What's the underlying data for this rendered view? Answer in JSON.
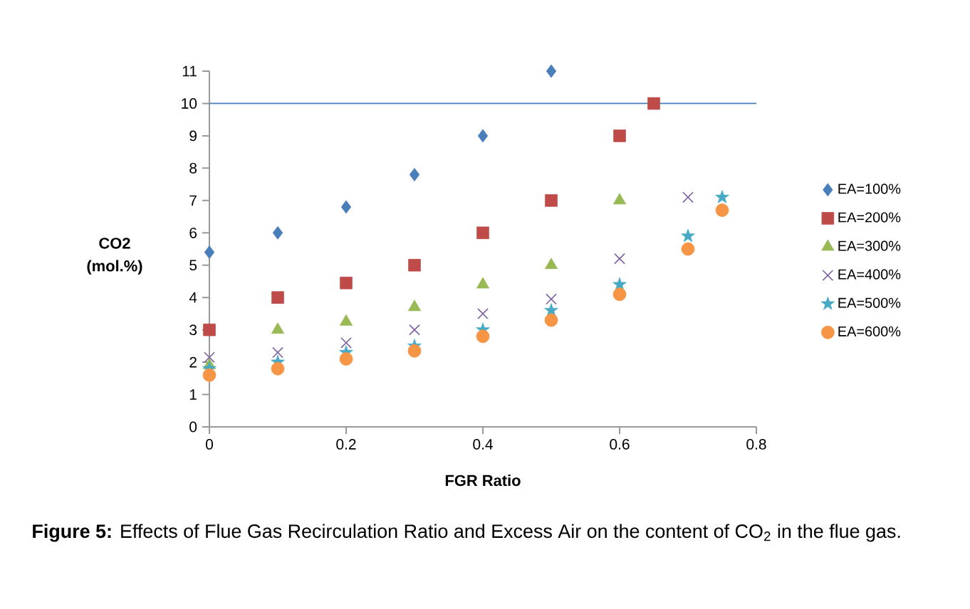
{
  "chart_data": {
    "type": "scatter",
    "xlabel": "FGR Ratio",
    "ylabel": "CO2 (mol.%)",
    "xlim": [
      0,
      0.8
    ],
    "xticks": [
      0,
      0.2,
      0.4,
      0.6,
      0.8
    ],
    "ylim": [
      0,
      11
    ],
    "yticks": [
      0,
      1,
      2,
      3,
      4,
      5,
      6,
      7,
      8,
      9,
      10,
      11
    ],
    "grid": false,
    "legend": "right",
    "series": [
      {
        "name": "EA=100%",
        "color": "#4a7ebb",
        "marker": "diamond",
        "x": [
          0,
          0.1,
          0.2,
          0.3,
          0.4,
          0.5
        ],
        "values": [
          5.4,
          6.0,
          6.8,
          7.8,
          9.0,
          11.0
        ]
      },
      {
        "name": "EA=200%",
        "color": "#be4b48",
        "marker": "square",
        "x": [
          0,
          0.1,
          0.2,
          0.3,
          0.4,
          0.5,
          0.6,
          0.65
        ],
        "values": [
          3.0,
          4.0,
          4.45,
          5.0,
          6.0,
          7.0,
          9.0,
          10.0
        ]
      },
      {
        "name": "EA=300%",
        "color": "#98b954",
        "marker": "triangle",
        "x": [
          0,
          0.1,
          0.2,
          0.3,
          0.4,
          0.5,
          0.6
        ],
        "values": [
          1.9,
          3.0,
          3.25,
          3.7,
          4.4,
          5.0,
          7.0
        ]
      },
      {
        "name": "EA=400%",
        "color": "#7d60a0",
        "marker": "cross",
        "x": [
          0,
          0.1,
          0.2,
          0.3,
          0.4,
          0.5,
          0.6,
          0.7
        ],
        "values": [
          2.15,
          2.3,
          2.6,
          3.0,
          3.5,
          3.95,
          5.2,
          7.1
        ]
      },
      {
        "name": "EA=500%",
        "color": "#46aac5",
        "marker": "star",
        "x": [
          0,
          0.1,
          0.2,
          0.3,
          0.4,
          0.5,
          0.6,
          0.7,
          0.75
        ],
        "values": [
          1.8,
          2.0,
          2.3,
          2.5,
          3.0,
          3.6,
          4.4,
          5.9,
          7.1
        ]
      },
      {
        "name": "EA=600%",
        "color": "#f69546",
        "marker": "circle",
        "x": [
          0,
          0.1,
          0.2,
          0.3,
          0.4,
          0.5,
          0.6,
          0.7,
          0.75
        ],
        "values": [
          1.6,
          1.8,
          2.1,
          2.35,
          2.8,
          3.3,
          4.1,
          5.5,
          6.7
        ]
      }
    ],
    "ref_lines": [
      {
        "axis": "y",
        "value": 10,
        "label": null,
        "color": "#4a7ebb"
      }
    ],
    "annotations": [
      "**Figure 5:** Effects of Flue Gas Recirculation Ratio and Excess Air on the content of CO$_{2}$ in the flue gas."
    ]
  }
}
